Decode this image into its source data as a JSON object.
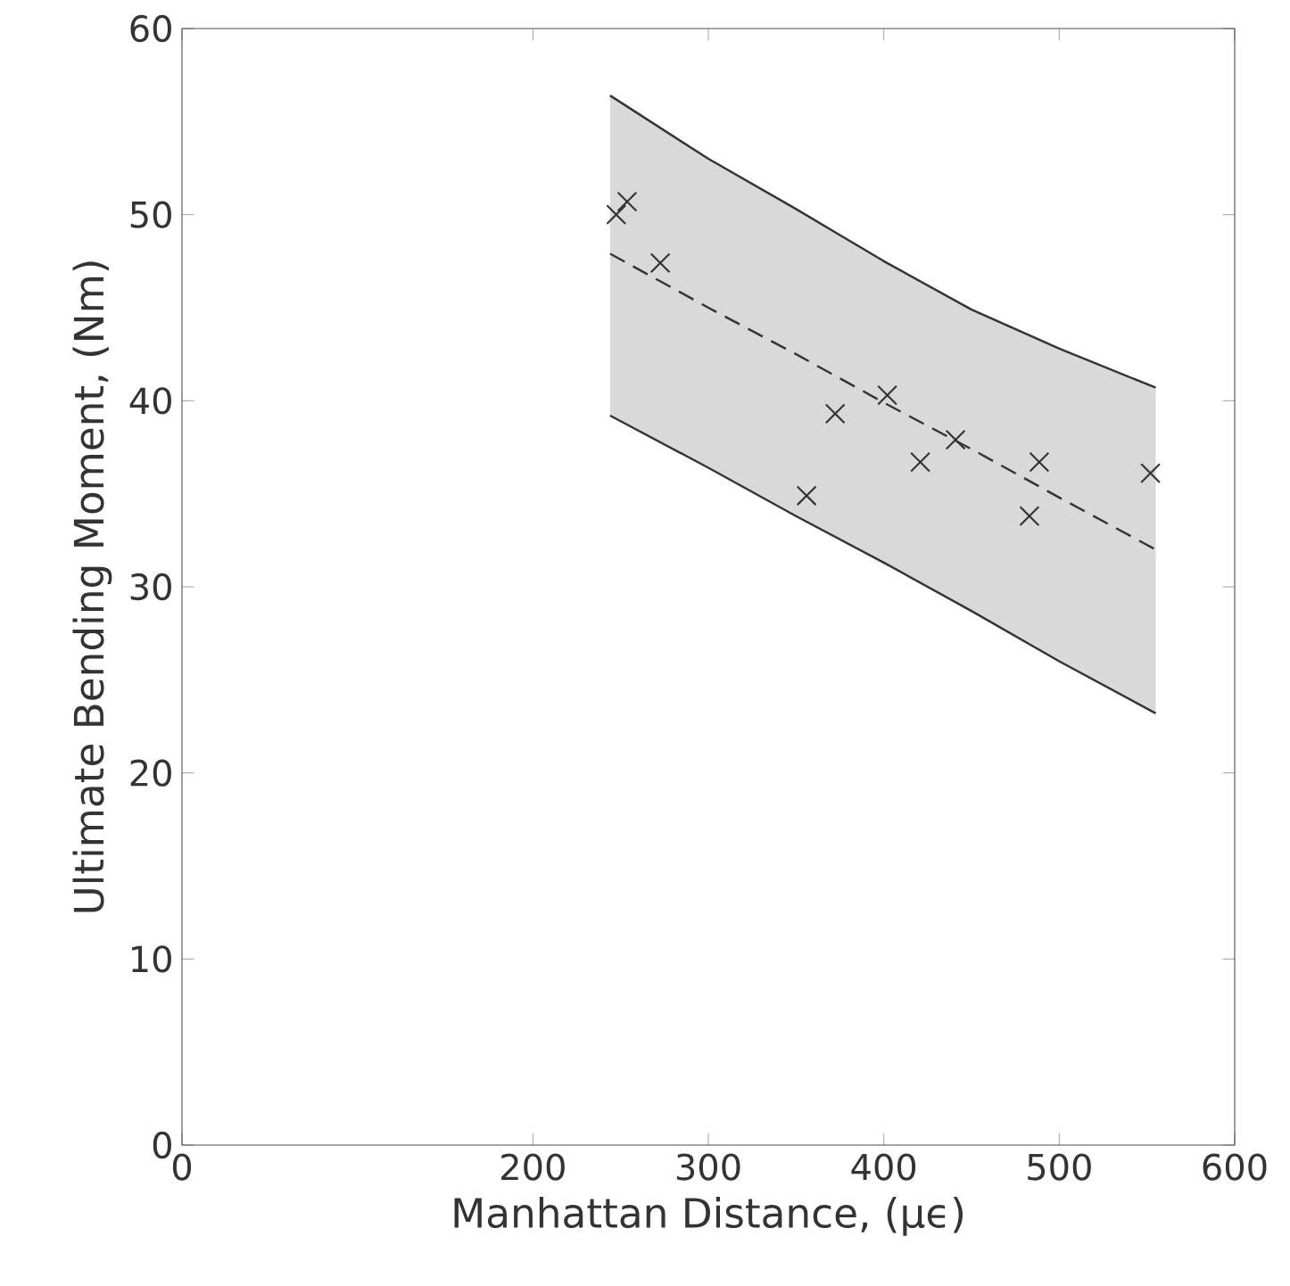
{
  "chart_data": {
    "type": "scatter",
    "xlabel": "Manhattan Distance, (μϵ)",
    "ylabel": "Ultimate Bending Moment, (Nm)",
    "xlim": [
      0,
      600
    ],
    "ylim": [
      0,
      60
    ],
    "xticks": [
      0,
      200,
      300,
      400,
      500,
      600
    ],
    "yticks": [
      0,
      10,
      20,
      30,
      40,
      50,
      60
    ],
    "series": [
      {
        "type": "line",
        "color": "#333333",
        "line_style": "dashed",
        "marker": "none",
        "x": [
          244,
          300,
          350,
          400,
          450,
          500,
          555
        ],
        "values": [
          47.9,
          45.0,
          42.5,
          39.9,
          37.4,
          34.8,
          32.0
        ],
        "lower": [
          39.2,
          36.4,
          33.8,
          31.3,
          28.7,
          26.0,
          23.2
        ],
        "upper": [
          56.4,
          53.0,
          50.3,
          47.5,
          44.9,
          42.8,
          40.7
        ]
      },
      {
        "type": "line",
        "color": "#333333",
        "line_style": "solid",
        "marker": "none",
        "x": [
          244,
          300,
          350,
          400,
          450,
          500,
          555
        ],
        "values": [
          56.4,
          53.0,
          50.3,
          47.5,
          44.9,
          42.8,
          40.7
        ]
      },
      {
        "type": "line",
        "color": "#333333",
        "line_style": "solid",
        "marker": "none",
        "x": [
          244,
          300,
          350,
          400,
          450,
          500,
          555
        ],
        "values": [
          39.2,
          36.4,
          33.8,
          31.3,
          28.7,
          26.0,
          23.2
        ]
      },
      {
        "color": "#333333",
        "marker": "cross",
        "x": [
          247.5,
          253.7,
          272.6,
          356,
          372.3,
          402,
          420.8,
          440.9,
          483,
          488.6,
          552
        ],
        "values": [
          50.0,
          50.7,
          47.4,
          34.9,
          39.3,
          40.3,
          36.7,
          37.9,
          33.8,
          36.7,
          36.1
        ]
      }
    ]
  }
}
